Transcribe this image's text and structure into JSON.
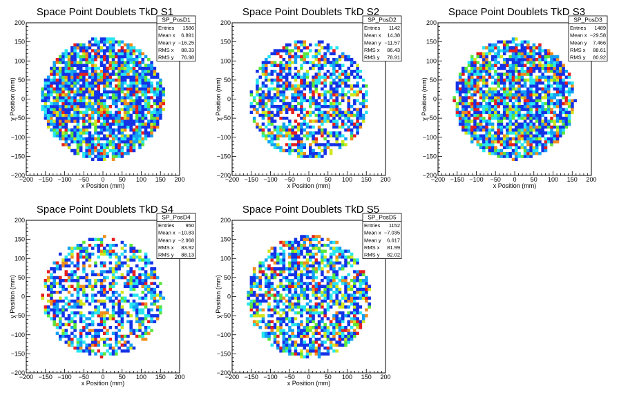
{
  "chart_data": [
    {
      "type": "heatmap",
      "title": "Space Point Doublets TkD S1",
      "xlabel": "x Position (mm)",
      "ylabel": "y Position (mm)",
      "xlim": [
        -200,
        200
      ],
      "ylim": [
        -200,
        200
      ],
      "x_ticks": [
        "−200",
        "−150",
        "−100",
        "−50",
        "0",
        "50",
        "100",
        "150",
        "200"
      ],
      "y_ticks": [
        "−200",
        "−150",
        "−100",
        "−50",
        "0",
        "50",
        "100",
        "150",
        "200"
      ],
      "fill_radius": 160,
      "density": 0.85,
      "seed": 11,
      "stats": {
        "name": "SP_PosD1",
        "rows": [
          {
            "label": "Entries",
            "value": "1586"
          },
          {
            "label": "Mean x",
            "value": "6.891"
          },
          {
            "label": "Mean y",
            "value": "−16.25"
          },
          {
            "label": "RMS x",
            "value": "88.33"
          },
          {
            "label": "RMS y",
            "value": "76.98"
          }
        ]
      }
    },
    {
      "type": "heatmap",
      "title": "Space Point Doublets TkD S2",
      "xlabel": "x Position (mm)",
      "ylabel": "y Position (mm)",
      "xlim": [
        -200,
        200
      ],
      "ylim": [
        -200,
        200
      ],
      "x_ticks": [
        "−200",
        "−150",
        "−100",
        "−50",
        "0",
        "50",
        "100",
        "150",
        "200"
      ],
      "y_ticks": [
        "−200",
        "−150",
        "−100",
        "−50",
        "0",
        "50",
        "100",
        "150",
        "200"
      ],
      "fill_radius": 155,
      "density": 0.62,
      "seed": 23,
      "stats": {
        "name": "SP_PosD2",
        "rows": [
          {
            "label": "Entries",
            "value": "1142"
          },
          {
            "label": "Mean x",
            "value": "14.38"
          },
          {
            "label": "Mean y",
            "value": "−11.57"
          },
          {
            "label": "RMS x",
            "value": "86.43"
          },
          {
            "label": "RMS y",
            "value": "78.91"
          }
        ]
      }
    },
    {
      "type": "heatmap",
      "title": "Space Point Doublets TkD S3",
      "xlabel": "x Position (mm)",
      "ylabel": "y Position (mm)",
      "xlim": [
        -200,
        200
      ],
      "ylim": [
        -200,
        200
      ],
      "x_ticks": [
        "−200",
        "−150",
        "−100",
        "−50",
        "0",
        "50",
        "100",
        "150",
        "200"
      ],
      "y_ticks": [
        "−200",
        "−150",
        "−100",
        "−50",
        "0",
        "50",
        "100",
        "150",
        "200"
      ],
      "fill_radius": 158,
      "density": 0.8,
      "seed": 37,
      "stats": {
        "name": "SP_PosD3",
        "rows": [
          {
            "label": "Entries",
            "value": "1489"
          },
          {
            "label": "Mean x",
            "value": "−29.58"
          },
          {
            "label": "Mean y",
            "value": "7.466"
          },
          {
            "label": "RMS x",
            "value": "88.61"
          },
          {
            "label": "RMS y",
            "value": "80.92"
          }
        ]
      }
    },
    {
      "type": "heatmap",
      "title": "Space Point Doublets TkD S4",
      "xlabel": "x Position (mm)",
      "ylabel": "y Position (mm)",
      "xlim": [
        -200,
        200
      ],
      "ylim": [
        -200,
        200
      ],
      "x_ticks": [
        "−200",
        "−150",
        "−100",
        "−50",
        "0",
        "50",
        "100",
        "150",
        "200"
      ],
      "y_ticks": [
        "−200",
        "−150",
        "−100",
        "−50",
        "0",
        "50",
        "100",
        "150",
        "200"
      ],
      "fill_radius": 158,
      "density": 0.55,
      "seed": 53,
      "stats": {
        "name": "SP_PosD4",
        "rows": [
          {
            "label": "Entries",
            "value": "950"
          },
          {
            "label": "Mean x",
            "value": "−10.83"
          },
          {
            "label": "Mean y",
            "value": "−2.968"
          },
          {
            "label": "RMS x",
            "value": "83.92"
          },
          {
            "label": "RMS y",
            "value": "88.13"
          }
        ]
      }
    },
    {
      "type": "heatmap",
      "title": "Space Point Doublets TkD S5",
      "xlabel": "x Position (mm)",
      "ylabel": "y Position (mm)",
      "xlim": [
        -200,
        200
      ],
      "ylim": [
        -200,
        200
      ],
      "x_ticks": [
        "−200",
        "−150",
        "−100",
        "−50",
        "0",
        "50",
        "100",
        "150",
        "200"
      ],
      "y_ticks": [
        "−200",
        "−150",
        "−100",
        "−50",
        "0",
        "50",
        "100",
        "150",
        "200"
      ],
      "fill_radius": 160,
      "density": 0.64,
      "seed": 71,
      "stats": {
        "name": "SP_PosD5",
        "rows": [
          {
            "label": "Entries",
            "value": "1152"
          },
          {
            "label": "Mean x",
            "value": "−7.035"
          },
          {
            "label": "Mean y",
            "value": "6.617"
          },
          {
            "label": "RMS x",
            "value": "81.99"
          },
          {
            "label": "RMS y",
            "value": "82.02"
          }
        ]
      }
    }
  ],
  "colors": {
    "blue": "#1432e6",
    "light_blue": "#14a0f5",
    "cyan": "#28e6f0",
    "green": "#5ae63c",
    "yellow": "#d2e61e",
    "orange": "#f08c1e",
    "red": "#e61e1e",
    "white": "#ffffff"
  }
}
